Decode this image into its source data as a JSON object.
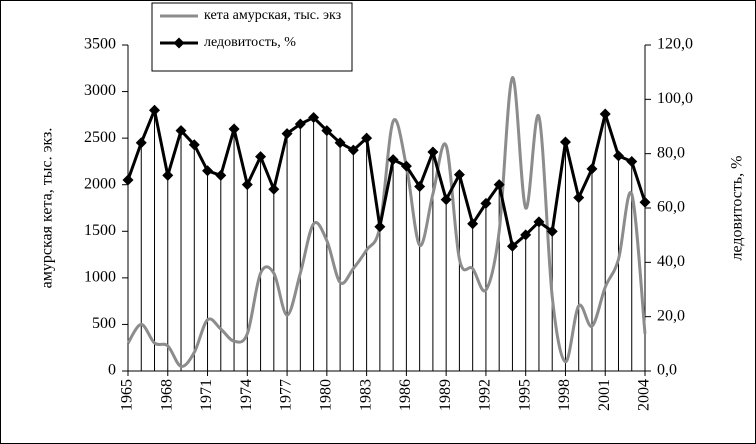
{
  "chart_data": {
    "type": "line",
    "x": [
      1965,
      1966,
      1967,
      1968,
      1969,
      1970,
      1971,
      1972,
      1973,
      1974,
      1975,
      1976,
      1977,
      1978,
      1979,
      1980,
      1981,
      1982,
      1983,
      1984,
      1985,
      1986,
      1987,
      1988,
      1989,
      1990,
      1991,
      1992,
      1993,
      1994,
      1995,
      1996,
      1997,
      1998,
      1999,
      2000,
      2001,
      2002,
      2003,
      2004
    ],
    "xlim": [
      1965,
      2004
    ],
    "xticks": [
      1965,
      1968,
      1971,
      1974,
      1977,
      1980,
      1983,
      1986,
      1989,
      1992,
      1995,
      1998,
      2001,
      2004
    ],
    "ylabel": "амурская кета, тыс. экз.",
    "y2label": "ледовитость, %",
    "ylim": [
      0,
      3500
    ],
    "yticks": [
      0,
      500,
      1000,
      1500,
      2000,
      2500,
      3000,
      3500
    ],
    "y2lim": [
      0,
      120
    ],
    "y2ticks": [
      {
        "value": 0,
        "label": "0,0"
      },
      {
        "value": 20,
        "label": "20,0"
      },
      {
        "value": 40,
        "label": "40,0"
      },
      {
        "value": 60,
        "label": "60,0"
      },
      {
        "value": 80,
        "label": "80,0"
      },
      {
        "value": 100,
        "label": "100,0"
      },
      {
        "value": 120,
        "label": "120,0"
      }
    ],
    "legend": "upper left",
    "series": [
      {
        "name": "кета амурская, тыс. экз",
        "color": "#8c8c8c",
        "smooth": true,
        "values": [
          300,
          500,
          300,
          270,
          50,
          200,
          550,
          450,
          320,
          400,
          1050,
          1050,
          600,
          1050,
          1580,
          1400,
          950,
          1100,
          1300,
          1550,
          2680,
          2200,
          1350,
          1900,
          2420,
          1200,
          1100,
          870,
          1500,
          3150,
          1750,
          2730,
          800,
          100,
          700,
          480,
          900,
          1200,
          1900,
          400
        ]
      },
      {
        "name": "ледовитость, %",
        "color": "#000000",
        "axis": "y2",
        "marker": "diamond",
        "values": [
          70.3,
          84.0,
          96.0,
          72.0,
          88.5,
          83.3,
          73.7,
          72.0,
          89.1,
          68.6,
          78.9,
          66.9,
          87.4,
          90.9,
          93.3,
          88.5,
          84.0,
          81.3,
          85.7,
          53.1,
          77.8,
          75.4,
          67.9,
          80.6,
          63.1,
          72.3,
          54.2,
          61.7,
          68.6,
          45.9,
          50.1,
          54.9,
          51.4,
          84.3,
          63.8,
          74.4,
          94.6,
          79.2,
          77.1,
          62.1
        ]
      }
    ]
  }
}
